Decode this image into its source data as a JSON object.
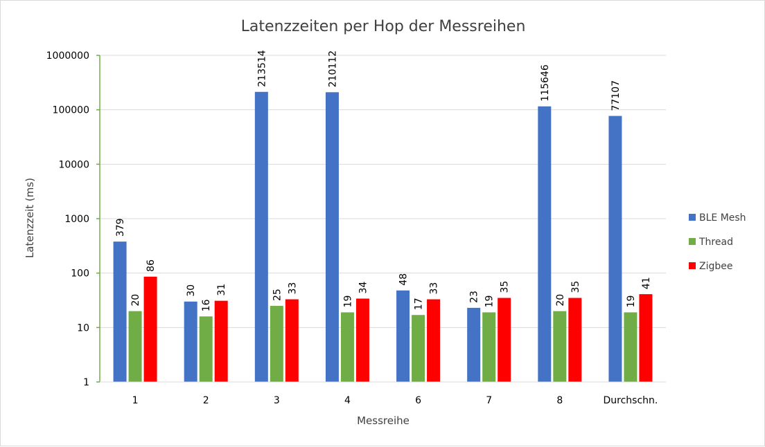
{
  "chart_data": {
    "type": "bar",
    "title": "Latenzzeiten per Hop der Messreihen",
    "xlabel": "Messreihe",
    "ylabel": "Latenzzeit  (ms)",
    "y_scale": "log",
    "ylim": [
      1,
      1000000
    ],
    "y_ticks": [
      "1",
      "10",
      "100",
      "1000",
      "10000",
      "100000",
      "1000000"
    ],
    "categories": [
      "1",
      "2",
      "3",
      "4",
      "6",
      "7",
      "8",
      "Durchschn."
    ],
    "series": [
      {
        "name": "BLE Mesh",
        "color": "#4472c4",
        "values": [
          379,
          30,
          213514,
          210112,
          48,
          23,
          115646,
          77107
        ]
      },
      {
        "name": "Thread",
        "color": "#70ad47",
        "values": [
          20,
          16,
          25,
          19,
          17,
          19,
          20,
          19
        ]
      },
      {
        "name": "Zigbee",
        "color": "#ff0000",
        "values": [
          86,
          31,
          33,
          34,
          33,
          35,
          35,
          41
        ]
      }
    ],
    "grid": true,
    "legend_position": "right"
  }
}
